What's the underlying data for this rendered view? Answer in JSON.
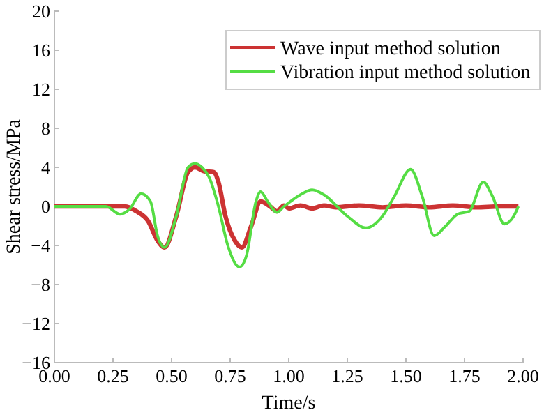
{
  "chart_data": {
    "type": "line",
    "xlabel": "Time/s",
    "ylabel": "Shear stress/MPa",
    "xlim": [
      0,
      2
    ],
    "ylim": [
      -16,
      20
    ],
    "xticks": [
      {
        "value": 0,
        "label": "0.00"
      },
      {
        "value": 0.25,
        "label": "0.25"
      },
      {
        "value": 0.5,
        "label": "0.50"
      },
      {
        "value": 0.75,
        "label": "0.75"
      },
      {
        "value": 1,
        "label": "1.00"
      },
      {
        "value": 1.25,
        "label": "1.25"
      },
      {
        "value": 1.5,
        "label": "1.50"
      },
      {
        "value": 1.75,
        "label": "1.75"
      },
      {
        "value": 2,
        "label": "2.00"
      }
    ],
    "yticks": [
      {
        "value": -16,
        "label": "−16"
      },
      {
        "value": -12,
        "label": "−12"
      },
      {
        "value": -8,
        "label": "−8"
      },
      {
        "value": -4,
        "label": "−4"
      },
      0,
      4,
      8,
      12,
      16,
      20
    ],
    "legend": "top right",
    "grid": false,
    "series": [
      {
        "name": "Wave input method solution",
        "color": "#cc3333",
        "x": [
          0,
          0.3,
          0.35,
          0.4,
          0.44,
          0.47,
          0.52,
          0.57,
          0.6,
          0.64,
          0.68,
          0.7,
          0.73,
          0.77,
          0.8,
          0.84,
          0.88,
          0.92,
          0.95,
          0.98,
          1.0,
          1.05,
          1.1,
          1.15,
          1.2,
          1.3,
          1.4,
          1.5,
          1.6,
          1.7,
          1.8,
          1.9,
          1.98
        ],
        "values": [
          0,
          0,
          -0.5,
          -1.5,
          -3.5,
          -4.2,
          -1,
          3.5,
          4,
          3.6,
          3.5,
          2.5,
          -1,
          -3.5,
          -4.2,
          -2,
          0.5,
          0,
          -0.5,
          0.1,
          -0.2,
          0.1,
          -0.2,
          0.1,
          -0.1,
          0.1,
          -0.1,
          0.1,
          -0.1,
          0.1,
          -0.1,
          0,
          0
        ]
      },
      {
        "name": "Vibration input method solution",
        "color": "#55dd44",
        "x": [
          0,
          0.22,
          0.28,
          0.32,
          0.37,
          0.41,
          0.44,
          0.47,
          0.52,
          0.57,
          0.6,
          0.63,
          0.66,
          0.7,
          0.74,
          0.79,
          0.82,
          0.86,
          0.88,
          0.91,
          0.95,
          0.98,
          1.05,
          1.1,
          1.15,
          1.25,
          1.33,
          1.4,
          1.45,
          1.52,
          1.57,
          1.62,
          1.67,
          1.72,
          1.77,
          1.83,
          1.87,
          1.92,
          1.96,
          1.98
        ],
        "values": [
          0,
          0,
          -0.8,
          -0.3,
          1.3,
          0.5,
          -3,
          -4.2,
          -1,
          4,
          4.4,
          4,
          3,
          0,
          -4,
          -6.2,
          -5,
          0.5,
          1.5,
          0.5,
          -0.6,
          0,
          1.2,
          1.7,
          1.2,
          -1,
          -2.2,
          -1,
          1,
          3.8,
          1,
          -3,
          -2,
          -0.8,
          -0.5,
          2.5,
          1,
          -1.8,
          -1,
          0
        ]
      }
    ]
  }
}
